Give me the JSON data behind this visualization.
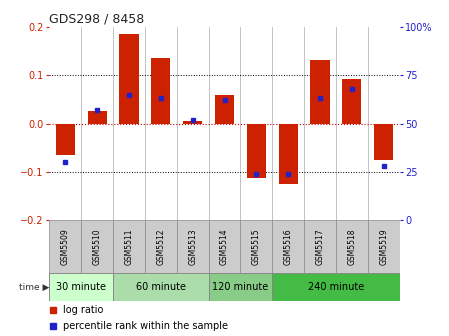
{
  "title": "GDS298 / 8458",
  "samples": [
    "GSM5509",
    "GSM5510",
    "GSM5511",
    "GSM5512",
    "GSM5513",
    "GSM5514",
    "GSM5515",
    "GSM5516",
    "GSM5517",
    "GSM5518",
    "GSM5519"
  ],
  "log_ratio": [
    -0.065,
    0.025,
    0.185,
    0.135,
    0.005,
    0.06,
    -0.113,
    -0.125,
    0.132,
    0.093,
    -0.075
  ],
  "percentile": [
    30,
    57,
    65,
    63,
    52,
    62,
    24,
    24,
    63,
    68,
    28
  ],
  "time_groups": [
    {
      "label": "30 minute",
      "start": 0,
      "end": 2
    },
    {
      "label": "60 minute",
      "start": 2,
      "end": 5
    },
    {
      "label": "120 minute",
      "start": 5,
      "end": 7
    },
    {
      "label": "240 minute",
      "start": 7,
      "end": 11
    }
  ],
  "time_group_colors": [
    "#ccffcc",
    "#aaddaa",
    "#88cc88",
    "#44bb44"
  ],
  "bar_color": "#cc2200",
  "dot_color": "#2222cc",
  "ylim": [
    -0.2,
    0.2
  ],
  "y2lim": [
    0,
    100
  ],
  "yticks": [
    -0.2,
    -0.1,
    0.0,
    0.1,
    0.2
  ],
  "y2ticks": [
    0,
    25,
    50,
    75,
    100
  ],
  "hline_color": "#cc0000",
  "dotted_color": "#000000",
  "bg_color": "#ffffff",
  "sample_bg": "#cccccc"
}
